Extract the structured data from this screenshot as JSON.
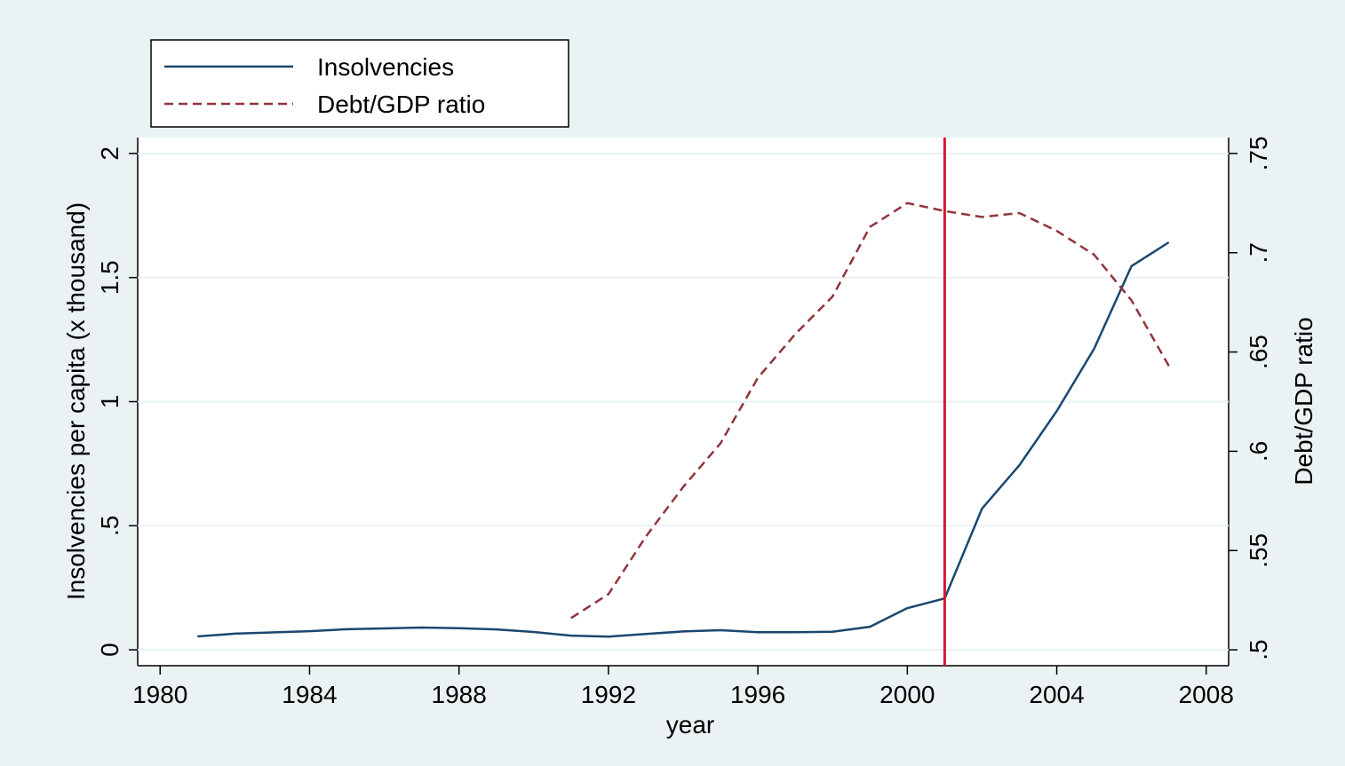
{
  "chart_data": {
    "type": "line",
    "x_label": "year",
    "y_label": "Insolvencies per capita (x thousand)",
    "y2_label": "Debt/GDP ratio",
    "x": [
      1981,
      1982,
      1983,
      1984,
      1985,
      1986,
      1987,
      1988,
      1989,
      1990,
      1991,
      1992,
      1993,
      1994,
      1995,
      1996,
      1997,
      1998,
      1999,
      2000,
      2001,
      2002,
      2003,
      2004,
      2005,
      2006,
      2007
    ],
    "series": [
      {
        "name": "Insolvencies",
        "color": "#1a476f",
        "dash": false,
        "values": [
          0.054,
          0.065,
          0.07,
          0.075,
          0.083,
          0.086,
          0.09,
          0.087,
          0.082,
          0.072,
          0.057,
          0.053,
          0.064,
          0.074,
          0.079,
          0.071,
          0.071,
          0.073,
          0.093,
          0.168,
          0.207,
          0.569,
          0.744,
          0.962,
          1.213,
          1.546,
          1.642
        ]
      },
      {
        "name": "Debt/GDP ratio",
        "color": "#90353b",
        "dash": true,
        "axis": "y2",
        "values": [
          null,
          null,
          null,
          null,
          null,
          null,
          null,
          null,
          null,
          null,
          0.516,
          0.528,
          0.557,
          0.582,
          0.604,
          0.637,
          0.659,
          0.678,
          0.713,
          0.725,
          0.721,
          0.718,
          0.72,
          0.711,
          0.699,
          0.676,
          0.643
        ]
      }
    ],
    "xlim": [
      1979.4,
      2008.6
    ],
    "xticks": [
      1980,
      1984,
      1988,
      1992,
      1996,
      2000,
      2004,
      2008
    ],
    "ylim": [
      -0.064,
      2.064
    ],
    "yticks": [
      0,
      {
        "value": 0.5,
        "label": ".5"
      },
      1,
      1.5,
      2
    ],
    "y2lim": [
      0.492,
      0.758
    ],
    "y2ticks": [
      {
        "value": 0.5,
        "label": ".5"
      },
      {
        "value": 0.55,
        "label": ".55"
      },
      {
        "value": 0.6,
        "label": ".6"
      },
      {
        "value": 0.65,
        "label": ".65"
      },
      {
        "value": 0.7,
        "label": ".7"
      },
      {
        "value": 0.75,
        "label": ".75"
      }
    ],
    "vline": {
      "x": 2001,
      "color": "#d7172f"
    },
    "grid": true,
    "legend": "top-left"
  }
}
